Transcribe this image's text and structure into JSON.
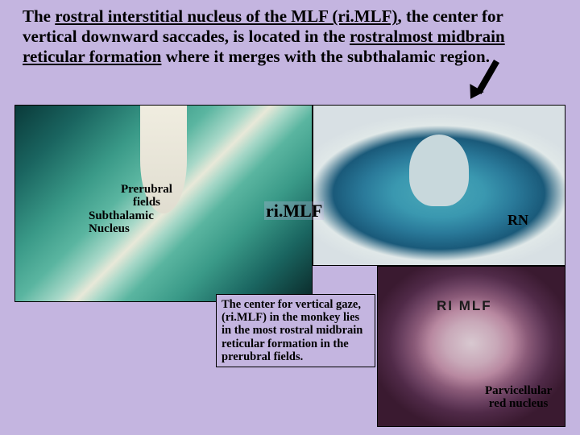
{
  "title": {
    "p1a": "The ",
    "p1b": "rostral interstitial nucleus of the MLF (ri.MLF)",
    "p1c": ", the center for vertical downward saccades, is located in the ",
    "p1d": "rostralmost midbrain reticular formation",
    "p1e": " where it merges with the subthalamic region."
  },
  "labels": {
    "prerubral_l1": "Prerubral",
    "prerubral_l2": "fields",
    "subthalamic_l1": "Subthalamic",
    "subthalamic_l2": "Nucleus",
    "rimlf": "ri.MLF",
    "rn": "RN",
    "parv_l1": "Parvicellular",
    "parv_l2": "red nucleus",
    "rimlf_tag": "RI MLF"
  },
  "caption": "The center for vertical gaze, (ri.MLF) in the monkey lies in the most rostral midbrain reticular formation in the prerubral fields.",
  "colors": {
    "background": "#c4b5e0",
    "text": "#000000"
  }
}
